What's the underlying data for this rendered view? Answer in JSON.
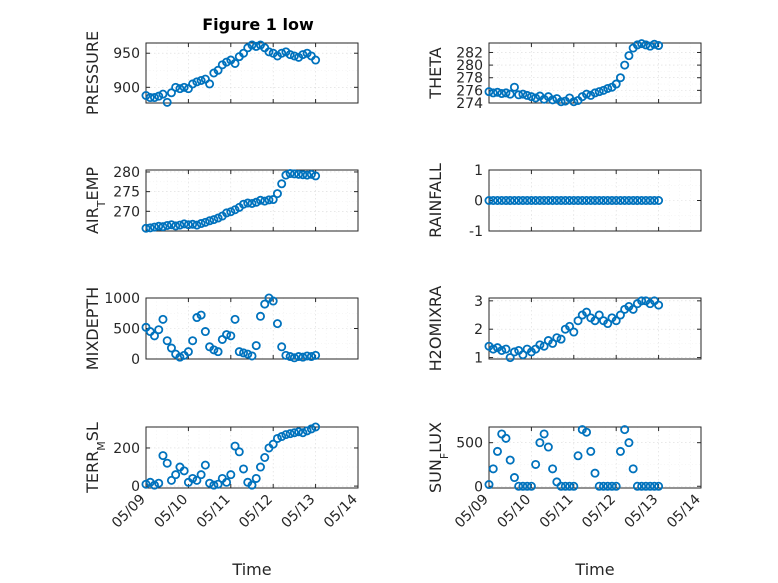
{
  "title": "Figure 1 low",
  "xlabel": "Time",
  "marker_color": "#0072bd",
  "x_ticks": [
    "05/09",
    "05/10",
    "05/11",
    "05/12",
    "05/13",
    "05/14"
  ],
  "chart_data": [
    {
      "type": "scatter",
      "panel": "PRESSURE",
      "ylabel": "PRESSURE",
      "yticks": [
        "900",
        "950"
      ],
      "ylim": [
        877,
        965
      ],
      "xlim_days": [
        0,
        5
      ],
      "grid": "on",
      "x": [
        0.0,
        0.1,
        0.2,
        0.3,
        0.4,
        0.5,
        0.6,
        0.7,
        0.8,
        0.9,
        1.0,
        1.1,
        1.2,
        1.3,
        1.4,
        1.5,
        1.6,
        1.7,
        1.8,
        1.9,
        2.0,
        2.1,
        2.2,
        2.3,
        2.4,
        2.5,
        2.6,
        2.7,
        2.8,
        2.9,
        3.0,
        3.1,
        3.2,
        3.3,
        3.4,
        3.5,
        3.6,
        3.7,
        3.8,
        3.9,
        4.0
      ],
      "y": [
        888,
        885,
        885,
        887,
        890,
        878,
        892,
        900,
        898,
        900,
        898,
        905,
        908,
        910,
        912,
        905,
        921,
        925,
        933,
        937,
        940,
        935,
        945,
        950,
        958,
        962,
        960,
        962,
        958,
        952,
        950,
        946,
        950,
        952,
        948,
        946,
        944,
        948,
        950,
        946,
        940
      ]
    },
    {
      "type": "scatter",
      "panel": "THETA",
      "ylabel": "THETA",
      "yticks": [
        "274",
        "276",
        "278",
        "280",
        "282"
      ],
      "ylim": [
        274,
        283.5
      ],
      "xlim_days": [
        0,
        5
      ],
      "grid": "on",
      "x": [
        0.0,
        0.1,
        0.2,
        0.3,
        0.4,
        0.5,
        0.6,
        0.7,
        0.8,
        0.9,
        1.0,
        1.1,
        1.2,
        1.3,
        1.4,
        1.5,
        1.6,
        1.7,
        1.8,
        1.9,
        2.0,
        2.1,
        2.2,
        2.3,
        2.4,
        2.5,
        2.6,
        2.7,
        2.8,
        2.9,
        3.0,
        3.1,
        3.2,
        3.3,
        3.4,
        3.5,
        3.6,
        3.7,
        3.8,
        3.9,
        4.0
      ],
      "y": [
        275.8,
        275.6,
        275.7,
        275.5,
        275.6,
        275.4,
        276.5,
        275.3,
        275.4,
        275.2,
        275.0,
        274.8,
        275.1,
        274.6,
        275.0,
        274.5,
        274.7,
        274.2,
        274.3,
        274.8,
        274.2,
        274.4,
        275.0,
        275.4,
        275.2,
        275.6,
        275.8,
        276.0,
        276.3,
        276.5,
        277.0,
        278.0,
        280.0,
        281.5,
        282.7,
        283.2,
        283.4,
        283.2,
        283.0,
        283.3,
        283.1
      ]
    },
    {
      "type": "scatter",
      "panel": "AIR_TEMP",
      "ylabel": "AIR_TEMP",
      "yticks": [
        "270",
        "275",
        "280"
      ],
      "ylim": [
        265,
        280.5
      ],
      "xlim_days": [
        0,
        5
      ],
      "grid": "on",
      "x": [
        0.0,
        0.1,
        0.2,
        0.3,
        0.4,
        0.5,
        0.6,
        0.7,
        0.8,
        0.9,
        1.0,
        1.1,
        1.2,
        1.3,
        1.4,
        1.5,
        1.6,
        1.7,
        1.8,
        1.9,
        2.0,
        2.1,
        2.2,
        2.3,
        2.4,
        2.5,
        2.6,
        2.7,
        2.8,
        2.9,
        3.0,
        3.1,
        3.2,
        3.3,
        3.4,
        3.5,
        3.6,
        3.7,
        3.8,
        3.9,
        4.0
      ],
      "y": [
        265.7,
        265.8,
        266.0,
        266.2,
        266.1,
        266.4,
        266.6,
        266.3,
        266.5,
        266.8,
        266.6,
        266.7,
        266.5,
        266.9,
        267.2,
        267.6,
        267.9,
        268.3,
        268.8,
        269.6,
        269.9,
        270.4,
        271.0,
        271.8,
        272.1,
        272.0,
        272.3,
        272.8,
        272.6,
        272.9,
        273.0,
        274.5,
        277.0,
        279.2,
        279.6,
        279.5,
        279.4,
        279.3,
        279.2,
        279.4,
        279.0
      ]
    },
    {
      "type": "scatter",
      "panel": "RAINFALL",
      "ylabel": "RAINFALL",
      "yticks": [
        "-1",
        "0",
        "1"
      ],
      "ylim": [
        -1,
        1
      ],
      "xlim_days": [
        0,
        5
      ],
      "grid": "on",
      "x": [
        0.0,
        0.1,
        0.2,
        0.3,
        0.4,
        0.5,
        0.6,
        0.7,
        0.8,
        0.9,
        1.0,
        1.1,
        1.2,
        1.3,
        1.4,
        1.5,
        1.6,
        1.7,
        1.8,
        1.9,
        2.0,
        2.1,
        2.2,
        2.3,
        2.4,
        2.5,
        2.6,
        2.7,
        2.8,
        2.9,
        3.0,
        3.1,
        3.2,
        3.3,
        3.4,
        3.5,
        3.6,
        3.7,
        3.8,
        3.9,
        4.0
      ],
      "y": [
        0,
        0,
        0,
        0,
        0,
        0,
        0,
        0,
        0,
        0,
        0,
        0,
        0,
        0,
        0,
        0,
        0,
        0,
        0,
        0,
        0,
        0,
        0,
        0,
        0,
        0,
        0,
        0,
        0,
        0,
        0,
        0,
        0,
        0,
        0,
        0,
        0,
        0,
        0,
        0,
        0
      ]
    },
    {
      "type": "scatter",
      "panel": "MIXDEPTH",
      "ylabel": "MIXDEPTH",
      "yticks": [
        "0",
        "500",
        "1000"
      ],
      "ylim": [
        0,
        1000
      ],
      "xlim_days": [
        0,
        5
      ],
      "grid": "on",
      "x": [
        0.0,
        0.1,
        0.2,
        0.3,
        0.4,
        0.5,
        0.6,
        0.7,
        0.8,
        0.9,
        1.0,
        1.1,
        1.2,
        1.3,
        1.4,
        1.5,
        1.6,
        1.7,
        1.8,
        1.9,
        2.0,
        2.1,
        2.2,
        2.3,
        2.4,
        2.5,
        2.6,
        2.7,
        2.8,
        2.9,
        3.0,
        3.1,
        3.2,
        3.3,
        3.4,
        3.5,
        3.6,
        3.7,
        3.8,
        3.9,
        4.0
      ],
      "y": [
        520,
        450,
        380,
        480,
        650,
        300,
        180,
        80,
        30,
        60,
        120,
        300,
        680,
        720,
        450,
        200,
        150,
        120,
        320,
        400,
        380,
        650,
        120,
        100,
        80,
        50,
        220,
        700,
        900,
        1000,
        950,
        580,
        200,
        60,
        40,
        20,
        40,
        30,
        50,
        40,
        60
      ]
    },
    {
      "type": "scatter",
      "panel": "H2OMIXRA",
      "ylabel": "H2OMIXRA",
      "yticks": [
        "1",
        "2",
        "3"
      ],
      "ylim": [
        0.95,
        3.1
      ],
      "xlim_days": [
        0,
        5
      ],
      "grid": "on",
      "x": [
        0.0,
        0.1,
        0.2,
        0.3,
        0.4,
        0.5,
        0.6,
        0.7,
        0.8,
        0.9,
        1.0,
        1.1,
        1.2,
        1.3,
        1.4,
        1.5,
        1.6,
        1.7,
        1.8,
        1.9,
        2.0,
        2.1,
        2.2,
        2.3,
        2.4,
        2.5,
        2.6,
        2.7,
        2.8,
        2.9,
        3.0,
        3.1,
        3.2,
        3.3,
        3.4,
        3.5,
        3.6,
        3.7,
        3.8,
        3.9,
        4.0
      ],
      "y": [
        1.4,
        1.3,
        1.35,
        1.25,
        1.3,
        1.0,
        1.2,
        1.25,
        1.1,
        1.3,
        1.2,
        1.3,
        1.45,
        1.4,
        1.6,
        1.5,
        1.7,
        1.65,
        2.0,
        2.1,
        1.9,
        2.3,
        2.5,
        2.6,
        2.4,
        2.3,
        2.5,
        2.3,
        2.2,
        2.4,
        2.3,
        2.5,
        2.7,
        2.8,
        2.7,
        2.9,
        3.0,
        3.0,
        2.9,
        3.0,
        2.85
      ]
    },
    {
      "type": "scatter",
      "panel": "TERR_MSL",
      "ylabel": "TERR_MSL",
      "yticks": [
        "0",
        "200"
      ],
      "ylim": [
        -10,
        310
      ],
      "xlim_days": [
        0,
        5
      ],
      "grid": "on",
      "x": [
        0.0,
        0.1,
        0.2,
        0.3,
        0.4,
        0.5,
        0.6,
        0.7,
        0.8,
        0.9,
        1.0,
        1.1,
        1.2,
        1.3,
        1.4,
        1.5,
        1.6,
        1.7,
        1.8,
        1.9,
        2.0,
        2.1,
        2.2,
        2.3,
        2.4,
        2.5,
        2.6,
        2.7,
        2.8,
        2.9,
        3.0,
        3.1,
        3.2,
        3.3,
        3.4,
        3.5,
        3.6,
        3.7,
        3.8,
        3.9,
        4.0
      ],
      "y": [
        10,
        20,
        5,
        15,
        160,
        120,
        30,
        60,
        100,
        80,
        20,
        40,
        30,
        60,
        110,
        15,
        5,
        10,
        40,
        20,
        60,
        210,
        180,
        90,
        20,
        5,
        40,
        100,
        150,
        200,
        220,
        250,
        260,
        270,
        275,
        280,
        285,
        280,
        290,
        300,
        310
      ]
    },
    {
      "type": "scatter",
      "panel": "SUN_FLUX",
      "ylabel": "SUN_FLUX",
      "yticks": [
        "0",
        "500"
      ],
      "ylim": [
        -20,
        680
      ],
      "xlim_days": [
        0,
        5
      ],
      "grid": "on",
      "x": [
        0.0,
        0.1,
        0.2,
        0.3,
        0.4,
        0.5,
        0.6,
        0.7,
        0.8,
        0.9,
        1.0,
        1.1,
        1.2,
        1.3,
        1.4,
        1.5,
        1.6,
        1.7,
        1.8,
        1.9,
        2.0,
        2.1,
        2.2,
        2.3,
        2.4,
        2.5,
        2.6,
        2.7,
        2.8,
        2.9,
        3.0,
        3.1,
        3.2,
        3.3,
        3.4,
        3.5,
        3.6,
        3.7,
        3.8,
        3.9,
        4.0
      ],
      "y": [
        20,
        200,
        400,
        600,
        550,
        300,
        100,
        0,
        0,
        0,
        0,
        250,
        500,
        600,
        450,
        200,
        50,
        0,
        0,
        0,
        0,
        350,
        650,
        620,
        400,
        150,
        0,
        0,
        0,
        0,
        0,
        400,
        650,
        500,
        200,
        0,
        0,
        0,
        0,
        0,
        0
      ]
    }
  ]
}
